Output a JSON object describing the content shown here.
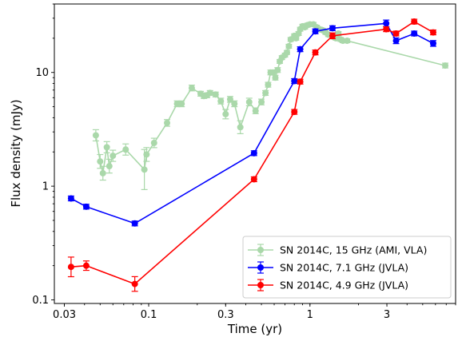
{
  "chart_data": {
    "type": "scatter",
    "title": "",
    "xlabel": "Time (yr)",
    "ylabel": "Flux density (mJy)",
    "xscale": "log",
    "yscale": "log",
    "xlim": [
      0.026,
      8.0
    ],
    "ylim": [
      0.093,
      40.0
    ],
    "xticks": [
      {
        "value": 0.03,
        "label": "0.03"
      },
      {
        "value": 0.1,
        "label": "0.1"
      },
      {
        "value": 0.3,
        "label": "0.3"
      },
      {
        "value": 1,
        "label": "1"
      },
      {
        "value": 3,
        "label": "3"
      }
    ],
    "yticks": [
      {
        "value": 0.1,
        "label": "0.1"
      },
      {
        "value": 1,
        "label": "1"
      },
      {
        "value": 10,
        "label": "10"
      }
    ],
    "grid": false,
    "legend_position": "lower-right",
    "series": [
      {
        "name": "SN 2014C, 15 GHz (AMI, VLA)",
        "color": "#2ca02c",
        "alpha": 0.4,
        "marker": "circle",
        "x": [
          0.047,
          0.05,
          0.052,
          0.055,
          0.057,
          0.06,
          0.072,
          0.094,
          0.097,
          0.108,
          0.13,
          0.15,
          0.16,
          0.185,
          0.21,
          0.22,
          0.23,
          0.24,
          0.26,
          0.28,
          0.3,
          0.32,
          0.34,
          0.37,
          0.42,
          0.46,
          0.5,
          0.53,
          0.55,
          0.57,
          0.59,
          0.61,
          0.63,
          0.65,
          0.67,
          0.7,
          0.72,
          0.74,
          0.76,
          0.8,
          0.82,
          0.85,
          0.87,
          0.9,
          0.93,
          0.96,
          1.0,
          1.05,
          1.1,
          1.15,
          1.2,
          1.25,
          1.3,
          1.4,
          1.45,
          1.5,
          1.55,
          1.6,
          1.7,
          6.9
        ],
        "y": [
          2.8,
          1.65,
          1.3,
          2.2,
          1.5,
          1.85,
          2.1,
          1.4,
          1.9,
          2.4,
          3.6,
          5.3,
          5.3,
          7.3,
          6.5,
          6.2,
          6.3,
          6.6,
          6.4,
          5.6,
          4.3,
          5.8,
          5.3,
          3.3,
          5.5,
          4.6,
          5.5,
          6.6,
          7.8,
          10.0,
          10.0,
          9.0,
          10.5,
          12.5,
          13.5,
          14.2,
          15.0,
          17.0,
          19.5,
          21.0,
          20.0,
          22.0,
          24.0,
          25.5,
          25.0,
          26.0,
          26.5,
          26.5,
          25.0,
          24.0,
          23.5,
          22.5,
          21.5,
          20.5,
          20.0,
          22.0,
          19.5,
          19.0,
          19.0,
          11.5
        ],
        "yerr_factor": [
          0.12,
          0.15,
          0.15,
          0.12,
          0.15,
          0.12,
          0.12,
          0.5,
          0.15,
          0.1,
          0.07,
          0.06,
          0.06,
          0.06,
          0.05,
          0.05,
          0.05,
          0.05,
          0.05,
          0.06,
          0.1,
          0.06,
          0.06,
          0.14,
          0.08,
          0.06,
          0.06,
          0.05,
          0.05,
          0.05,
          0.05,
          0.05,
          0.05,
          0.04,
          0.04,
          0.04,
          0.04,
          0.04,
          0.04,
          0.04,
          0.04,
          0.04,
          0.04,
          0.04,
          0.04,
          0.04,
          0.04,
          0.04,
          0.04,
          0.04,
          0.04,
          0.04,
          0.04,
          0.04,
          0.04,
          0.04,
          0.04,
          0.04,
          0.04,
          0.05
        ]
      },
      {
        "name": "SN 2014C, 7.1 GHz (JVLA)",
        "color": "#0000ff",
        "alpha": 1.0,
        "marker": "circle",
        "x": [
          0.033,
          0.041,
          0.082,
          0.45,
          0.8,
          0.87,
          1.08,
          1.38,
          2.97,
          3.42,
          4.43,
          5.81
        ],
        "y": [
          0.78,
          0.66,
          0.47,
          1.95,
          8.4,
          16.0,
          23.0,
          24.5,
          27.0,
          19.0,
          22.0,
          18.0
        ],
        "yerr_factor": [
          0.05,
          0.05,
          0.05,
          0.05,
          0.05,
          0.05,
          0.05,
          0.05,
          0.07,
          0.06,
          0.05,
          0.06
        ]
      },
      {
        "name": "SN 2014C, 4.9 GHz (JVLA)",
        "color": "#ff0000",
        "alpha": 1.0,
        "marker": "circle",
        "x": [
          0.033,
          0.041,
          0.082,
          0.45,
          0.8,
          0.87,
          1.08,
          1.38,
          2.97,
          3.42,
          4.43,
          5.81
        ],
        "y": [
          0.195,
          0.2,
          0.138,
          1.15,
          4.5,
          8.3,
          15.0,
          21.0,
          24.0,
          22.0,
          28.0,
          22.5
        ],
        "yerr_factor": [
          0.22,
          0.1,
          0.16,
          0.05,
          0.05,
          0.05,
          0.05,
          0.06,
          0.05,
          0.05,
          0.05,
          0.05
        ]
      }
    ]
  }
}
